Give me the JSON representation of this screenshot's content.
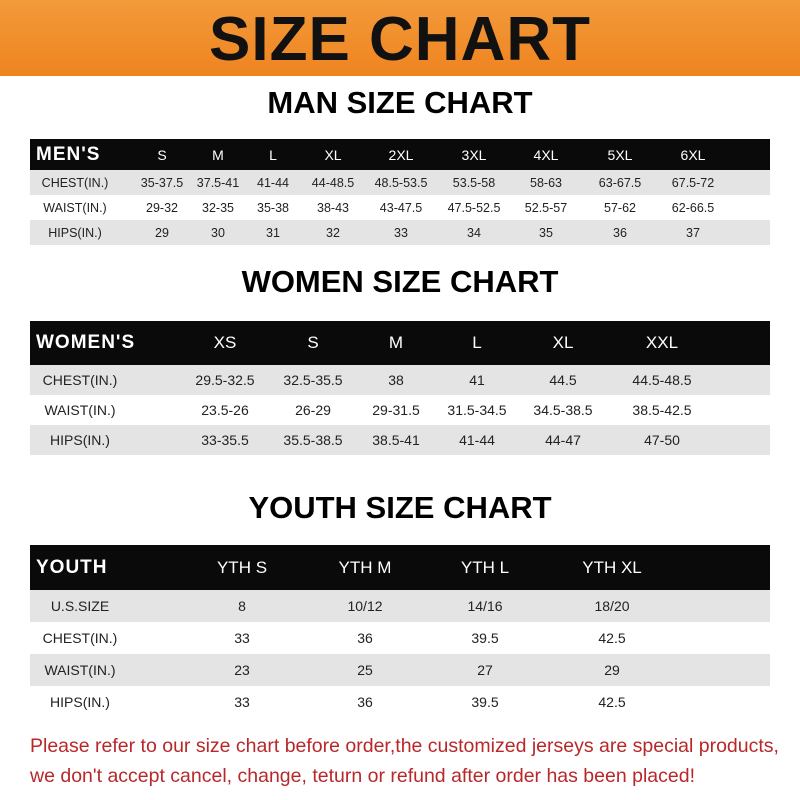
{
  "banner": {
    "title": "SIZE CHART",
    "color": "#f08a24"
  },
  "men": {
    "title": "MAN SIZE CHART",
    "corner": "MEN'S",
    "sizes": [
      "S",
      "M",
      "L",
      "XL",
      "2XL",
      "3XL",
      "4XL",
      "5XL",
      "6XL"
    ],
    "rows": [
      {
        "label": "CHEST(IN.)",
        "values": [
          "35-37.5",
          "37.5-41",
          "41-44",
          "44-48.5",
          "48.5-53.5",
          "53.5-58",
          "58-63",
          "63-67.5",
          "67.5-72"
        ]
      },
      {
        "label": "WAIST(IN.)",
        "values": [
          "29-32",
          "32-35",
          "35-38",
          "38-43",
          "43-47.5",
          "47.5-52.5",
          "52.5-57",
          "57-62",
          "62-66.5"
        ]
      },
      {
        "label": "HIPS(IN.)",
        "values": [
          "29",
          "30",
          "31",
          "32",
          "33",
          "34",
          "35",
          "36",
          "37"
        ]
      }
    ]
  },
  "women": {
    "title": "WOMEN SIZE CHART",
    "corner": "WOMEN'S",
    "sizes": [
      "XS",
      "S",
      "M",
      "L",
      "XL",
      "XXL"
    ],
    "rows": [
      {
        "label": "CHEST(IN.)",
        "values": [
          "29.5-32.5",
          "32.5-35.5",
          "38",
          "41",
          "44.5",
          "44.5-48.5"
        ]
      },
      {
        "label": "WAIST(IN.)",
        "values": [
          "23.5-26",
          "26-29",
          "29-31.5",
          "31.5-34.5",
          "34.5-38.5",
          "38.5-42.5"
        ]
      },
      {
        "label": "HIPS(IN.)",
        "values": [
          "33-35.5",
          "35.5-38.5",
          "38.5-41",
          "41-44",
          "44-47",
          "47-50"
        ]
      }
    ]
  },
  "youth": {
    "title": "YOUTH SIZE CHART",
    "corner": "YOUTH",
    "sizes": [
      "YTH S",
      "YTH M",
      "YTH L",
      "YTH XL"
    ],
    "rows": [
      {
        "label": "U.S.SIZE",
        "values": [
          "8",
          "10/12",
          "14/16",
          "18/20"
        ]
      },
      {
        "label": "CHEST(IN.)",
        "values": [
          "33",
          "36",
          "39.5",
          "42.5"
        ]
      },
      {
        "label": "WAIST(IN.)",
        "values": [
          "23",
          "25",
          "27",
          "29"
        ]
      },
      {
        "label": "HIPS(IN.)",
        "values": [
          "33",
          "36",
          "39.5",
          "42.5"
        ]
      }
    ]
  },
  "notice": {
    "line1": "Please refer to our size chart before order,the customized jerseys are special products,",
    "line2": "we don't accept cancel, change, teturn or refund after order has been placed!",
    "color": "#b8282a"
  }
}
